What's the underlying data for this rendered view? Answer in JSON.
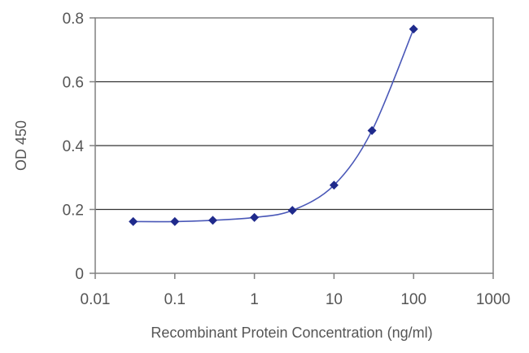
{
  "chart_data": {
    "type": "scatter",
    "title": "",
    "xlabel": "Recombinant Protein Concentration (ng/ml)",
    "ylabel": "OD 450",
    "xscale": "log",
    "xlim": [
      0.01,
      1000
    ],
    "ylim": [
      0,
      0.8
    ],
    "x_ticks": [
      0.01,
      0.1,
      1,
      10,
      100,
      1000
    ],
    "x_tick_labels": [
      "0.01",
      "0.1",
      "1",
      "10",
      "100",
      "1000"
    ],
    "y_ticks": [
      0,
      0.2,
      0.4,
      0.6,
      0.8
    ],
    "y_tick_labels": [
      "0",
      "0.2",
      "0.4",
      "0.6",
      "0.8"
    ],
    "grid": "horizontal lines at 0.2, 0.4, 0.6",
    "legend": "none",
    "series": [
      {
        "x": [
          0.03,
          0.1,
          0.3,
          1,
          3,
          10,
          30,
          100
        ],
        "y": [
          0.162,
          0.162,
          0.166,
          0.175,
          0.197,
          0.276,
          0.447,
          0.765
        ],
        "marker": "diamond",
        "fit_curve": true,
        "color": "#1f2a8c"
      }
    ],
    "colors": {
      "series": "#1f2a8c",
      "curve": "#4a58b8",
      "axis": "#808080",
      "gridline": "#333333",
      "text": "#555555"
    }
  }
}
